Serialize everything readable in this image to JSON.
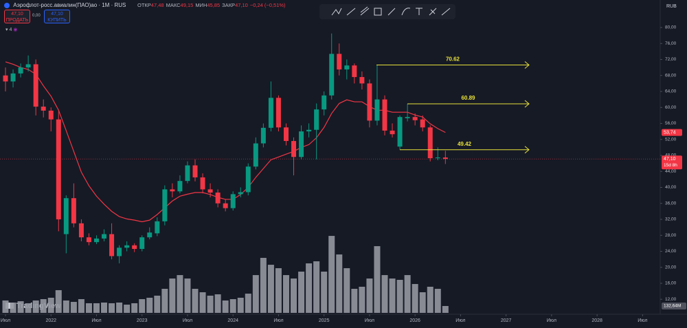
{
  "header": {
    "symbol": "Аэрофлот-росс.авиалин(ПАО)ао · 1М · RUS",
    "ohlc": [
      {
        "key": "ОТКР",
        "value": "47,48"
      },
      {
        "key": "МАКС",
        "value": "49,15"
      },
      {
        "key": "МИН",
        "value": "45,85"
      },
      {
        "key": "ЗАКР",
        "value": "47,10"
      },
      {
        "key": "",
        "value": "−0,24 (−0,51%)"
      }
    ],
    "sell_price": "47,10",
    "sell_label": "ПРОДАТЬ",
    "spread": "0,00",
    "buy_price": "47,10",
    "buy_label": "КУПИТЬ",
    "indicators": "4",
    "currency": "RUB",
    "watermark": "TradingView"
  },
  "chart_data": {
    "type": "candlestick",
    "up_color": "#089981",
    "down_color": "#f23645",
    "x": [
      "2021-07",
      "2021-08",
      "2021-09",
      "2021-10",
      "2021-11",
      "2021-12",
      "2022-01",
      "2022-02",
      "2022-03",
      "2022-04",
      "2022-05",
      "2022-06",
      "2022-07",
      "2022-08",
      "2022-09",
      "2022-10",
      "2022-11",
      "2022-12",
      "2023-01",
      "2023-02",
      "2023-03",
      "2023-04",
      "2023-05",
      "2023-06",
      "2023-07",
      "2023-08",
      "2023-09",
      "2023-10",
      "2023-11",
      "2023-12",
      "2024-01",
      "2024-02",
      "2024-03",
      "2024-04",
      "2024-05",
      "2024-06",
      "2024-07",
      "2024-08",
      "2024-09",
      "2024-10",
      "2024-11",
      "2024-12",
      "2025-01",
      "2025-02",
      "2025-03",
      "2025-04",
      "2025-05",
      "2025-06",
      "2025-07",
      "2025-08",
      "2025-09",
      "2025-10",
      "2025-11",
      "2025-12",
      "2026-01",
      "2026-02",
      "2026-03",
      "2026-04",
      "2026-05"
    ],
    "open": [
      68,
      66.5,
      68.5,
      70,
      70.8,
      60.2,
      59.2,
      57,
      28.3,
      37.3,
      31,
      27.5,
      26.3,
      27.2,
      28.3,
      22.8,
      24.9,
      25.5,
      24.6,
      27.5,
      28.5,
      31.5,
      39.5,
      39,
      41.6,
      45.5,
      42.5,
      39.5,
      38.7,
      36,
      34.8,
      38.3,
      38.8,
      45.2,
      51,
      54.9,
      62.4,
      55,
      51.6,
      47.6,
      54,
      54.4,
      59.5,
      63,
      73.4,
      69.5,
      70.5,
      67.6,
      66,
      56.7,
      62,
      54.2,
      50.2,
      57.3,
      57.6,
      57,
      55,
      47.3,
      47.48
    ],
    "high": [
      70,
      69.5,
      71,
      73,
      72,
      62,
      60,
      59,
      38,
      41,
      32,
      28.5,
      28,
      29.5,
      31,
      25.5,
      26.5,
      26,
      28,
      30,
      32.5,
      40.5,
      41,
      43,
      46.5,
      47,
      43.5,
      41,
      39.5,
      37,
      39,
      40,
      46,
      52.5,
      56,
      66.5,
      63,
      56,
      52.5,
      55.5,
      56,
      61,
      64,
      78.5,
      76,
      72,
      71,
      69,
      67,
      70.62,
      63,
      56,
      58,
      60.89,
      58.5,
      58,
      55.5,
      50,
      49.15
    ],
    "low": [
      64,
      65,
      67.5,
      69,
      58,
      57.5,
      54,
      29,
      23.5,
      30,
      26.5,
      25.5,
      25.8,
      26.5,
      22,
      21,
      24,
      23.8,
      24,
      27,
      27.8,
      30.5,
      37.5,
      38.5,
      41,
      41.5,
      38.5,
      37.5,
      35,
      34,
      34.2,
      37.5,
      38,
      44.5,
      50,
      54,
      54,
      50.5,
      43,
      47,
      52.5,
      47,
      58,
      62,
      68,
      67,
      66,
      64.5,
      55,
      55.5,
      53,
      52.5,
      49.42,
      56.5,
      55.5,
      54,
      46.5,
      46.8,
      45.85
    ],
    "close": [
      66.5,
      68.5,
      70,
      70.8,
      60.2,
      59.2,
      57,
      32,
      37.3,
      31,
      27.5,
      26.3,
      27.2,
      28.3,
      22.8,
      24.9,
      25.5,
      24.6,
      27.5,
      28.7,
      31.5,
      39.5,
      39,
      41.6,
      45.5,
      42.5,
      39.5,
      38.7,
      36,
      34.8,
      38.3,
      38.8,
      45.2,
      51,
      54.9,
      62.4,
      55,
      51.6,
      47.6,
      54,
      54.4,
      59.5,
      63,
      73.4,
      69.5,
      70.5,
      67.6,
      66,
      56.7,
      62,
      54.2,
      53.3,
      57.6,
      57.6,
      56.8,
      55,
      47.3,
      47.48,
      47.1
    ],
    "volume": [
      239,
      199,
      225,
      186,
      239,
      265,
      292,
      438,
      239,
      212,
      265,
      186,
      186,
      199,
      186,
      199,
      159,
      186,
      265,
      292,
      332,
      464,
      663,
      729,
      663,
      464,
      398,
      332,
      358,
      239,
      265,
      292,
      371,
      729,
      1061,
      928,
      862,
      729,
      663,
      796,
      955,
      995,
      796,
      1485,
      1127,
      862,
      464,
      504,
      663,
      1287,
      729,
      663,
      637,
      729,
      557,
      398,
      504,
      464,
      132.64
    ],
    "volume_color": "#9598a1",
    "volume_lim": [
      0,
      5930
    ],
    "volume_label": {
      "value": 132.64,
      "label": "132,64M"
    },
    "moving_average": {
      "color": "#f23645",
      "values": [
        71.4,
        70.8,
        70,
        69.5,
        68.3,
        65.4,
        62.8,
        59.3,
        54.2,
        49,
        43.8,
        40.4,
        37.8,
        35.8,
        34,
        32.7,
        32.1,
        31.8,
        31.4,
        31.8,
        33.2,
        34.9,
        36.6,
        37.8,
        38.3,
        38.7,
        38.7,
        38.2,
        37.5,
        37,
        37,
        38.2,
        40,
        42.5,
        44.7,
        46.9,
        47.6,
        48.3,
        49,
        50,
        50.7,
        52.4,
        55,
        58.5,
        61,
        61.9,
        61.4,
        61.4,
        60.2,
        59.3,
        59.3,
        58.8,
        58.8,
        58.8,
        58.1,
        57.6,
        55.9,
        54.7,
        53.74
      ]
    },
    "ma_label": {
      "value": 53.74,
      "label": "53,74"
    },
    "last_price": {
      "value": 47.1,
      "label": "47,10"
    },
    "countdown": "15d 8h",
    "annotations": [
      {
        "value": 70.62
      },
      {
        "value": 60.89
      },
      {
        "value": 49.42
      }
    ],
    "annotation_color": "#e8e13a",
    "ylim": [
      8.6,
      85.5
    ],
    "yticks": [
      {
        "value": 12,
        "label": "12,00"
      },
      {
        "value": 16,
        "label": "16,00"
      },
      {
        "value": 20,
        "label": "20,00"
      },
      {
        "value": 24,
        "label": "24,00"
      },
      {
        "value": 28,
        "label": "28,00"
      },
      {
        "value": 32,
        "label": "32,00"
      },
      {
        "value": 36,
        "label": "36,00"
      },
      {
        "value": 40,
        "label": "40,00"
      },
      {
        "value": 44,
        "label": "44,00"
      },
      {
        "value": 48,
        "label": "48,00"
      },
      {
        "value": 52,
        "label": "52,00"
      },
      {
        "value": 56,
        "label": "56,00"
      },
      {
        "value": 60,
        "label": "60,00"
      },
      {
        "value": 64,
        "label": "64,00"
      },
      {
        "value": 68,
        "label": "68,00"
      },
      {
        "value": 72,
        "label": "72,00"
      },
      {
        "value": 76,
        "label": "76,00"
      },
      {
        "value": 80,
        "label": "80,00"
      }
    ],
    "xticks": [
      {
        "value": "2021-07",
        "label": "Июл"
      },
      {
        "value": "2022-01",
        "label": "2022"
      },
      {
        "value": "2022-07",
        "label": "Июл"
      },
      {
        "value": "2023-01",
        "label": "2023"
      },
      {
        "value": "2023-07",
        "label": "Июл"
      },
      {
        "value": "2024-01",
        "label": "2024"
      },
      {
        "value": "2024-07",
        "label": "Июл"
      },
      {
        "value": "2025-01",
        "label": "2025"
      },
      {
        "value": "2025-07",
        "label": "Июл"
      },
      {
        "value": "2026-01",
        "label": "2026"
      },
      {
        "value": "2026-07",
        "label": "Июл"
      },
      {
        "value": "2027-01",
        "label": "2027"
      },
      {
        "value": "2027-07",
        "label": "Июл"
      },
      {
        "value": "2028-01",
        "label": "2028"
      },
      {
        "value": "2028-07",
        "label": "Июл"
      }
    ]
  }
}
